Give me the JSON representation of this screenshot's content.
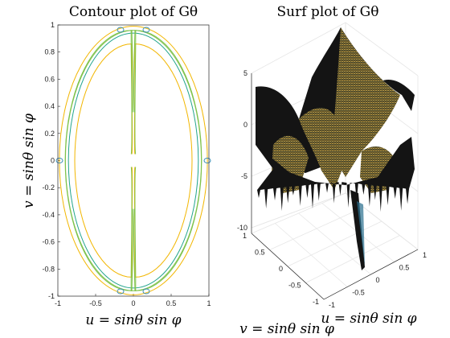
{
  "colors": {
    "contour_levels": [
      "#3a8fb7",
      "#21a38c",
      "#7ec24a",
      "#c6b93a",
      "#f2b600"
    ],
    "surface_dark": "#141414",
    "surface_warm": "#c9a84a"
  },
  "chart_data": [
    {
      "type": "contour",
      "title": "Contour plot of G_θ",
      "title_display": "Contour plot of Gθ",
      "xlabel": "u = sinθ sin φ",
      "ylabel": "v = sinθ sin φ",
      "xlim": [
        -1,
        1
      ],
      "ylim": [
        -1,
        1
      ],
      "x_ticks": [
        "-1",
        "-0.5",
        "0",
        "0.5",
        "1"
      ],
      "y_ticks": [
        "-1",
        "-0.8",
        "-0.6",
        "-0.4",
        "-0.2",
        "0",
        "0.2",
        "0.4",
        "0.6",
        "0.8",
        "1"
      ],
      "grid": false,
      "contour_shapes": [
        {
          "kind": "ellipse",
          "rx": 0.98,
          "ry": 0.99,
          "level_color_index": 4
        },
        {
          "kind": "ellipse",
          "rx": 0.9,
          "ry": 0.96,
          "level_color_index": 2
        },
        {
          "kind": "ellipse",
          "rx": 0.86,
          "ry": 0.94,
          "level_color_index": 1
        },
        {
          "kind": "split-lobe",
          "rx": 0.78,
          "ry": 0.86,
          "gap": 0.02,
          "tip": 0.38,
          "level_color_index": 4
        },
        {
          "kind": "split-lobe",
          "rx": 0.9,
          "ry": 0.96,
          "gap": 0.03,
          "tip": 0.72,
          "level_color_index": 2
        }
      ]
    },
    {
      "type": "surface",
      "title": "Surf plot of G_θ",
      "title_display": "Surf plot of Gθ",
      "xlabel": "u = sinθ sin φ",
      "ylabel": "v = sinθ sin φ",
      "zlim": [
        -10,
        5
      ],
      "z_ticks": [
        "5",
        "0",
        "-5",
        "-10"
      ],
      "x_ticks": [
        "-1",
        "-0.5",
        "0",
        "0.5",
        "1"
      ],
      "y_ticks": [
        "1",
        "0.5",
        "0",
        "-0.5",
        "-1"
      ],
      "grid": true
    }
  ]
}
